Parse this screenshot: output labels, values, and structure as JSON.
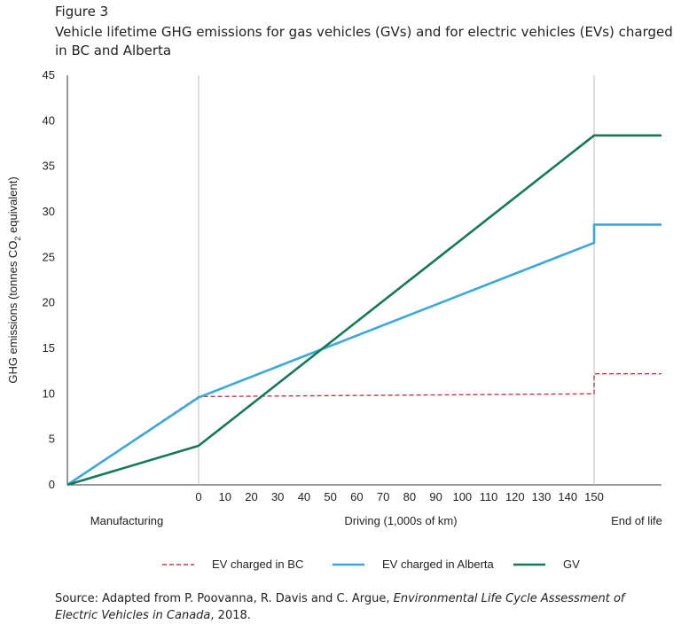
{
  "figure": {
    "label": "Figure 3",
    "title": "Vehicle lifetime GHG emissions for gas vehicles (GVs) and for electric vehicles (EVs) charged in BC and Alberta"
  },
  "chart_data": {
    "type": "line",
    "title": "Vehicle lifetime GHG emissions for gas vehicles (GVs) and for electric vehicles (EVs) charged in BC and Alberta",
    "ylabel_pre": "GHG emissions (tonnes CO",
    "ylabel_sub": "2",
    "ylabel_post": " equivalent)",
    "ylim": [
      0,
      45
    ],
    "yticks": [
      0,
      5,
      10,
      15,
      20,
      25,
      30,
      35,
      40,
      45
    ],
    "xticks": [
      0,
      10,
      20,
      30,
      40,
      50,
      60,
      70,
      80,
      90,
      100,
      110,
      120,
      130,
      140,
      150
    ],
    "phases": {
      "manufacturing": "Manufacturing",
      "driving": "Driving (1,000s of km)",
      "end": "End of life"
    },
    "grid": false,
    "legend_position": "bottom",
    "colors": {
      "ev_bc": "#c0394b",
      "ev_ab": "#3aa7dd",
      "gv": "#137a55"
    },
    "series": [
      {
        "id": "ev_bc",
        "name": "EV charged in BC",
        "style": "dashed",
        "manufacturing": [
          0,
          9.7
        ],
        "driving": [
          [
            0,
            9.7
          ],
          [
            150,
            10.0
          ]
        ],
        "end_of_life": [
          10.0,
          12.2
        ]
      },
      {
        "id": "ev_ab",
        "name": "EV charged in Alberta",
        "style": "solid",
        "manufacturing": [
          0,
          9.6
        ],
        "driving": [
          [
            0,
            9.6
          ],
          [
            150,
            26.6
          ]
        ],
        "end_of_life": [
          26.6,
          28.6
        ]
      },
      {
        "id": "gv",
        "name": "GV",
        "style": "solid",
        "manufacturing": [
          0,
          4.3
        ],
        "driving": [
          [
            0,
            4.3
          ],
          [
            150,
            38.4
          ]
        ],
        "end_of_life": [
          38.4,
          38.4
        ]
      }
    ]
  },
  "source": {
    "prefix": "Source: Adapted from P. Poovanna, R. Davis and C. Argue, ",
    "work": "Environmental Life Cycle Assessment of Electric Vehicles in Canada",
    "suffix": ", 2018."
  }
}
